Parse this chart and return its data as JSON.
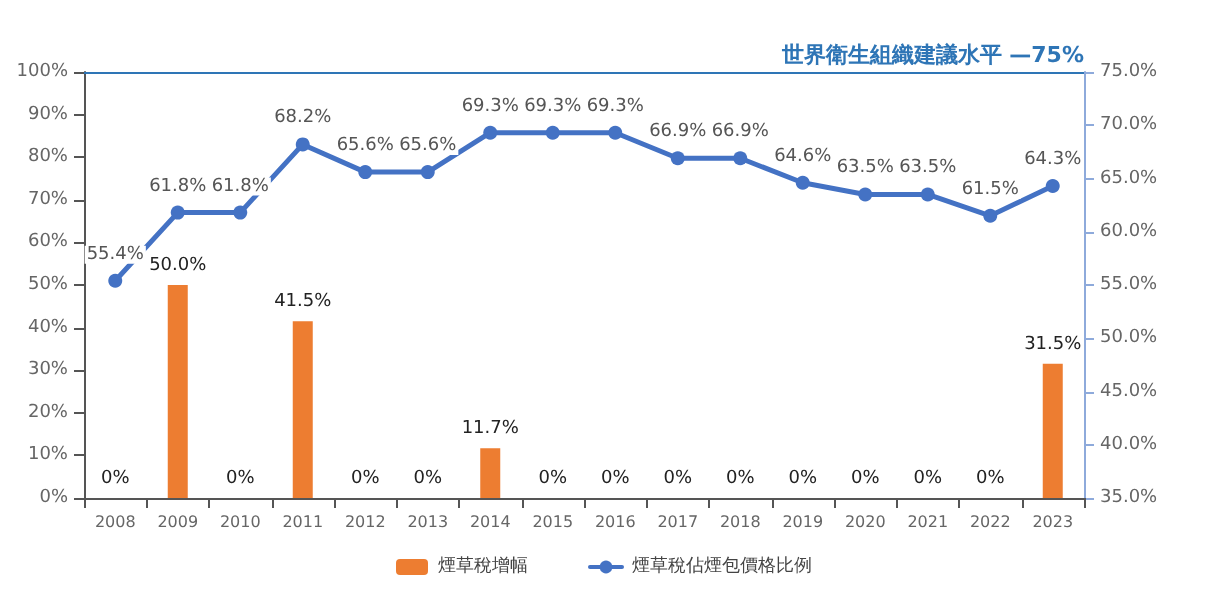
{
  "chart_data": {
    "type": "bar",
    "categories": [
      "2008",
      "2009",
      "2010",
      "2011",
      "2012",
      "2013",
      "2014",
      "2015",
      "2016",
      "2017",
      "2018",
      "2019",
      "2020",
      "2021",
      "2022",
      "2023"
    ],
    "series": [
      {
        "name": "煙草稅增幅",
        "color": "#ed7d31",
        "values": [
          0,
          50.0,
          0,
          41.5,
          0,
          0,
          11.7,
          0,
          0,
          0,
          0,
          0,
          0,
          0,
          0,
          31.5
        ],
        "value_labels": [
          "0%",
          "50.0%",
          "0%",
          "41.5%",
          "0%",
          "0%",
          "11.7%",
          "0%",
          "0%",
          "0%",
          "0%",
          "0%",
          "0%",
          "0%",
          "0%",
          "31.5%"
        ]
      },
      {
        "name": "煙草稅佔煙包價格比例",
        "type": "line",
        "axis": "y2",
        "color": "#4472c4",
        "values": [
          55.4,
          61.8,
          61.8,
          68.2,
          65.6,
          65.6,
          69.3,
          69.3,
          69.3,
          66.9,
          66.9,
          64.6,
          63.5,
          63.5,
          61.5,
          64.3
        ],
        "value_labels": [
          "55.4%",
          "61.8%",
          "61.8%",
          "68.2%",
          "65.6%",
          "65.6%",
          "69.3%",
          "69.3%",
          "69.3%",
          "66.9%",
          "66.9%",
          "64.6%",
          "63.5%",
          "63.5%",
          "61.5%",
          "64.3%"
        ]
      }
    ],
    "ylim": [
      0,
      100
    ],
    "yticks": [
      {
        "value": 0,
        "label": "0%"
      },
      {
        "value": 10,
        "label": "10%"
      },
      {
        "value": 20,
        "label": "20%"
      },
      {
        "value": 30,
        "label": "30%"
      },
      {
        "value": 40,
        "label": "40%"
      },
      {
        "value": 50,
        "label": "50%"
      },
      {
        "value": 60,
        "label": "60%"
      },
      {
        "value": 70,
        "label": "70%"
      },
      {
        "value": 80,
        "label": "80%"
      },
      {
        "value": 90,
        "label": "90%"
      },
      {
        "value": 100,
        "label": "100%"
      }
    ],
    "y2lim": [
      35,
      75
    ],
    "y2ticks": [
      {
        "value": 35,
        "label": "35.0%"
      },
      {
        "value": 40,
        "label": "40.0%"
      },
      {
        "value": 45,
        "label": "45.0%"
      },
      {
        "value": 50,
        "label": "50.0%"
      },
      {
        "value": 55,
        "label": "55.0%"
      },
      {
        "value": 60,
        "label": "60.0%"
      },
      {
        "value": 65,
        "label": "65.0%"
      },
      {
        "value": 70,
        "label": "70.0%"
      },
      {
        "value": 75,
        "label": "75.0%"
      }
    ],
    "ref_lines": [
      {
        "axis": "y2",
        "value": 75,
        "label": "世界衛生組織建議水平 —75%",
        "color": "#2e75b6"
      }
    ],
    "grid": false,
    "legend": "bottom",
    "marker": "circle",
    "line_style": "solid"
  }
}
